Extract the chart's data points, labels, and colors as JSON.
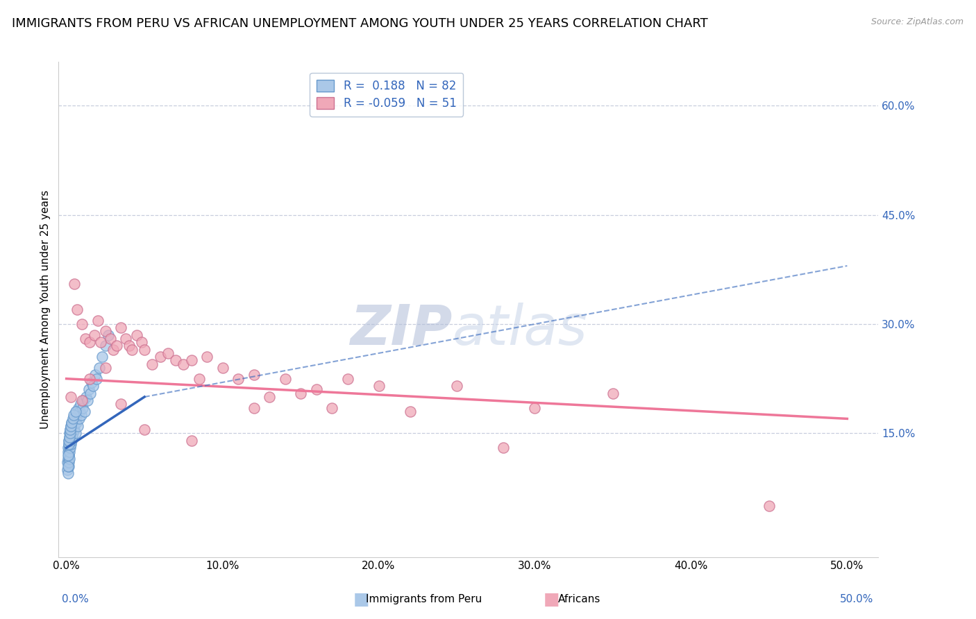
{
  "title": "IMMIGRANTS FROM PERU VS AFRICAN UNEMPLOYMENT AMONG YOUTH UNDER 25 YEARS CORRELATION CHART",
  "source": "Source: ZipAtlas.com",
  "ylabel_left": "Unemployment Among Youth under 25 years",
  "x_tick_labels": [
    "0.0%",
    "10.0%",
    "20.0%",
    "30.0%",
    "40.0%",
    "50.0%"
  ],
  "x_tick_vals": [
    0.0,
    10.0,
    20.0,
    30.0,
    40.0,
    50.0
  ],
  "y_tick_labels": [
    "15.0%",
    "30.0%",
    "45.0%",
    "60.0%"
  ],
  "y_tick_vals": [
    15.0,
    30.0,
    45.0,
    60.0
  ],
  "xlim": [
    -0.5,
    52.0
  ],
  "ylim": [
    -2.0,
    66.0
  ],
  "blue_R": "0.188",
  "blue_N": "82",
  "pink_R": "-0.059",
  "pink_N": "51",
  "blue_color": "#aac8e8",
  "blue_edge": "#6699cc",
  "pink_color": "#f0a8b8",
  "pink_edge": "#cc7090",
  "blue_trend_color": "#3366bb",
  "blue_trend_style": "-",
  "pink_trend_color": "#ee7799",
  "pink_trend_style": "-",
  "watermark": "ZIPatlas",
  "watermark_color": "#ccd5e8",
  "background_color": "#ffffff",
  "grid_color": "#c8cede",
  "title_fontsize": 13,
  "tick_fontsize": 11,
  "legend_fontsize": 12,
  "ylabel_fontsize": 11,
  "blue_scatter_x": [
    0.05,
    0.08,
    0.1,
    0.1,
    0.12,
    0.12,
    0.13,
    0.14,
    0.15,
    0.15,
    0.16,
    0.17,
    0.18,
    0.18,
    0.19,
    0.2,
    0.2,
    0.21,
    0.22,
    0.23,
    0.24,
    0.25,
    0.25,
    0.26,
    0.27,
    0.28,
    0.29,
    0.3,
    0.31,
    0.32,
    0.33,
    0.34,
    0.35,
    0.36,
    0.37,
    0.38,
    0.4,
    0.42,
    0.44,
    0.46,
    0.48,
    0.5,
    0.52,
    0.55,
    0.58,
    0.6,
    0.63,
    0.66,
    0.7,
    0.74,
    0.78,
    0.82,
    0.87,
    0.92,
    0.97,
    1.03,
    1.1,
    1.18,
    1.25,
    1.33,
    1.42,
    1.52,
    1.6,
    1.72,
    1.85,
    1.95,
    2.1,
    2.28,
    2.5,
    2.7,
    0.09,
    0.11,
    0.14,
    0.16,
    0.19,
    0.22,
    0.26,
    0.3,
    0.35,
    0.4,
    0.48,
    0.58
  ],
  "blue_scatter_y": [
    11.0,
    10.0,
    12.5,
    9.5,
    11.5,
    13.0,
    10.5,
    12.0,
    11.0,
    14.0,
    12.0,
    13.5,
    11.5,
    14.5,
    13.0,
    12.5,
    15.0,
    14.0,
    13.5,
    15.5,
    14.5,
    13.0,
    15.0,
    14.5,
    16.0,
    13.5,
    15.5,
    14.0,
    15.0,
    16.5,
    14.5,
    15.5,
    14.0,
    16.0,
    15.5,
    14.5,
    16.0,
    15.0,
    16.5,
    15.5,
    16.0,
    17.0,
    15.5,
    16.5,
    15.0,
    17.0,
    16.5,
    18.0,
    17.5,
    16.0,
    18.5,
    17.0,
    18.0,
    19.0,
    17.5,
    18.5,
    19.5,
    18.0,
    20.0,
    19.5,
    21.0,
    20.5,
    22.0,
    21.5,
    23.0,
    22.5,
    24.0,
    25.5,
    27.0,
    28.5,
    10.5,
    12.0,
    13.5,
    14.0,
    14.5,
    15.0,
    15.5,
    16.0,
    16.5,
    17.0,
    17.5,
    18.0
  ],
  "pink_scatter_x": [
    0.3,
    0.5,
    0.7,
    1.0,
    1.2,
    1.5,
    1.8,
    2.0,
    2.2,
    2.5,
    2.8,
    3.0,
    3.2,
    3.5,
    3.8,
    4.0,
    4.2,
    4.5,
    4.8,
    5.0,
    5.5,
    6.0,
    6.5,
    7.0,
    7.5,
    8.0,
    8.5,
    9.0,
    10.0,
    11.0,
    12.0,
    13.0,
    14.0,
    15.0,
    16.0,
    17.0,
    18.0,
    20.0,
    22.0,
    25.0,
    28.0,
    30.0,
    35.0,
    1.0,
    1.5,
    2.5,
    3.5,
    5.0,
    8.0,
    12.0,
    45.0
  ],
  "pink_scatter_y": [
    20.0,
    35.5,
    32.0,
    30.0,
    28.0,
    27.5,
    28.5,
    30.5,
    27.5,
    29.0,
    28.0,
    26.5,
    27.0,
    29.5,
    28.0,
    27.0,
    26.5,
    28.5,
    27.5,
    26.5,
    24.5,
    25.5,
    26.0,
    25.0,
    24.5,
    25.0,
    22.5,
    25.5,
    24.0,
    22.5,
    23.0,
    20.0,
    22.5,
    20.5,
    21.0,
    18.5,
    22.5,
    21.5,
    18.0,
    21.5,
    13.0,
    18.5,
    20.5,
    19.5,
    22.5,
    24.0,
    19.0,
    15.5,
    14.0,
    18.5,
    5.0
  ],
  "blue_trend_x": [
    0.0,
    5.0
  ],
  "blue_trend_y": [
    13.0,
    20.0
  ],
  "pink_trend_x": [
    0.0,
    50.0
  ],
  "pink_trend_y": [
    22.5,
    17.0
  ]
}
